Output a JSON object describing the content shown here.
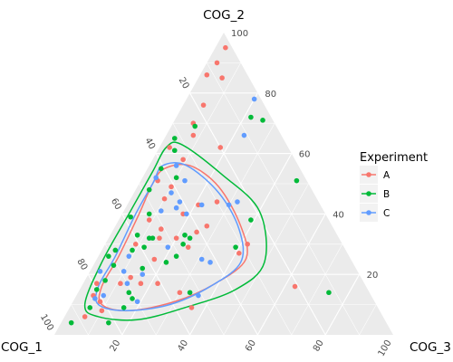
{
  "chart_data": {
    "type": "ternary-scatter",
    "axes": {
      "top": "COG_2",
      "left": "COG_1",
      "right": "COG_3"
    },
    "ticks": [
      20,
      40,
      60,
      80,
      100
    ],
    "grid": true,
    "legend": {
      "title": "Experiment",
      "position": "right",
      "entries": [
        {
          "name": "A",
          "color": "#F8766D"
        },
        {
          "name": "B",
          "color": "#00BA38"
        },
        {
          "name": "C",
          "color": "#619CFF"
        }
      ]
    },
    "series": [
      {
        "name": "A",
        "color": "#F8766D",
        "points": [
          {
            "cog1": 2,
            "cog2": 95,
            "cog3": 3
          },
          {
            "cog1": 7,
            "cog2": 90,
            "cog3": 3
          },
          {
            "cog1": 12,
            "cog2": 86,
            "cog3": 2
          },
          {
            "cog1": 8,
            "cog2": 85,
            "cog3": 7
          },
          {
            "cog1": 18,
            "cog2": 76,
            "cog3": 6
          },
          {
            "cog1": 35,
            "cog2": 62,
            "cog3": 3
          },
          {
            "cog1": 24,
            "cog2": 70,
            "cog3": 6
          },
          {
            "cog1": 26,
            "cog2": 66,
            "cog3": 8
          },
          {
            "cog1": 44,
            "cog2": 51,
            "cog3": 5
          },
          {
            "cog1": 33,
            "cog2": 58,
            "cog3": 9
          },
          {
            "cog1": 45,
            "cog2": 45,
            "cog3": 10
          },
          {
            "cog1": 53,
            "cog2": 38,
            "cog3": 9
          },
          {
            "cog1": 41,
            "cog2": 49,
            "cog3": 10
          },
          {
            "cog1": 30,
            "cog2": 44,
            "cog3": 26
          },
          {
            "cog1": 42,
            "cog2": 40,
            "cog3": 18
          },
          {
            "cog1": 51,
            "cog2": 35,
            "cog3": 14
          },
          {
            "cog1": 36,
            "cog2": 43,
            "cog3": 21
          },
          {
            "cog1": 61,
            "cog2": 30,
            "cog3": 9
          },
          {
            "cog1": 53,
            "cog2": 32,
            "cog3": 15
          },
          {
            "cog1": 48,
            "cog2": 32,
            "cog3": 20
          },
          {
            "cog1": 41,
            "cog2": 34,
            "cog3": 25
          },
          {
            "cog1": 46,
            "cog2": 29,
            "cog3": 25
          },
          {
            "cog1": 58,
            "cog2": 25,
            "cog3": 17
          },
          {
            "cog1": 37,
            "cog2": 36,
            "cog3": 27
          },
          {
            "cog1": 72,
            "cog2": 17,
            "cog3": 11
          },
          {
            "cog1": 79,
            "cog2": 17,
            "cog3": 4
          },
          {
            "cog1": 68,
            "cog2": 19,
            "cog3": 13
          },
          {
            "cog1": 88,
            "cog2": 6,
            "cog3": 6
          },
          {
            "cog1": 82,
            "cog2": 8,
            "cog3": 10
          },
          {
            "cog1": 81,
            "cog2": 11,
            "cog3": 8
          },
          {
            "cog1": 82,
            "cog2": 13,
            "cog3": 5
          },
          {
            "cog1": 56,
            "cog2": 14,
            "cog3": 30
          },
          {
            "cog1": 55,
            "cog2": 9,
            "cog3": 36
          },
          {
            "cog1": 66,
            "cog2": 17,
            "cog3": 17
          },
          {
            "cog1": 61,
            "cog2": 17,
            "cog3": 22
          },
          {
            "cog1": 32,
            "cog2": 27,
            "cog3": 41
          },
          {
            "cog1": 28,
            "cog2": 30,
            "cog3": 42
          },
          {
            "cog1": 20,
            "cog2": 62,
            "cog3": 18
          },
          {
            "cog1": 21,
            "cog2": 16,
            "cog3": 63
          }
        ]
      },
      {
        "name": "B",
        "color": "#00BA38",
        "points": [
          {
            "cog1": 24,
            "cog2": 69,
            "cog3": 7
          },
          {
            "cog1": 32,
            "cog2": 65,
            "cog3": 3
          },
          {
            "cog1": 34,
            "cog2": 61,
            "cog3": 5
          },
          {
            "cog1": 6,
            "cog2": 72,
            "cog3": 22
          },
          {
            "cog1": 3,
            "cog2": 71,
            "cog3": 26
          },
          {
            "cog1": 41,
            "cog2": 55,
            "cog3": 4
          },
          {
            "cog1": 38,
            "cog2": 52,
            "cog3": 10
          },
          {
            "cog1": 58,
            "cog2": 39,
            "cog3": 3
          },
          {
            "cog1": 48,
            "cog2": 48,
            "cog3": 4
          },
          {
            "cog1": 52,
            "cog2": 40,
            "cog3": 8
          },
          {
            "cog1": 59,
            "cog2": 33,
            "cog3": 8
          },
          {
            "cog1": 68,
            "cog2": 28,
            "cog3": 4
          },
          {
            "cog1": 59,
            "cog2": 29,
            "cog3": 12
          },
          {
            "cog1": 56,
            "cog2": 32,
            "cog3": 12
          },
          {
            "cog1": 55,
            "cog2": 32,
            "cog3": 13
          },
          {
            "cog1": 45,
            "cog2": 33,
            "cog3": 22
          },
          {
            "cog1": 71,
            "cog2": 26,
            "cog3": 3
          },
          {
            "cog1": 71,
            "cog2": 23,
            "cog3": 6
          },
          {
            "cog1": 76,
            "cog2": 18,
            "cog3": 6
          },
          {
            "cog1": 63,
            "cog2": 28,
            "cog3": 9
          },
          {
            "cog1": 63,
            "cog2": 22,
            "cog3": 15
          },
          {
            "cog1": 47,
            "cog2": 30,
            "cog3": 23
          },
          {
            "cog1": 51,
            "cog2": 26,
            "cog3": 23
          },
          {
            "cog1": 55,
            "cog2": 24,
            "cog3": 21
          },
          {
            "cog1": 71,
            "cog2": 14,
            "cog3": 15
          },
          {
            "cog1": 80,
            "cog2": 15,
            "cog3": 5
          },
          {
            "cog1": 93,
            "cog2": 4,
            "cog3": 3
          },
          {
            "cog1": 85,
            "cog2": 9,
            "cog3": 6
          },
          {
            "cog1": 71,
            "cog2": 12,
            "cog3": 17
          },
          {
            "cog1": 75,
            "cog2": 9,
            "cog3": 16
          },
          {
            "cog1": 82,
            "cog2": 4,
            "cog3": 14
          },
          {
            "cog1": 53,
            "cog2": 14,
            "cog3": 33
          },
          {
            "cog1": 44,
            "cog2": 32,
            "cog3": 24
          },
          {
            "cog1": 3,
            "cog2": 51,
            "cog3": 46
          },
          {
            "cog1": 23,
            "cog2": 38,
            "cog3": 39
          },
          {
            "cog1": 32,
            "cog2": 29,
            "cog3": 39
          },
          {
            "cog1": 12,
            "cog2": 14,
            "cog3": 74
          }
        ]
      },
      {
        "name": "C",
        "color": "#619CFF",
        "points": [
          {
            "cog1": 2,
            "cog2": 78,
            "cog3": 20
          },
          {
            "cog1": 11,
            "cog2": 66,
            "cog3": 23
          },
          {
            "cog1": 44,
            "cog2": 52,
            "cog3": 4
          },
          {
            "cog1": 36,
            "cog2": 56,
            "cog3": 8
          },
          {
            "cog1": 36,
            "cog2": 51,
            "cog3": 13
          },
          {
            "cog1": 48,
            "cog2": 41,
            "cog3": 11
          },
          {
            "cog1": 35,
            "cog2": 43,
            "cog3": 22
          },
          {
            "cog1": 43,
            "cog2": 42,
            "cog3": 15
          },
          {
            "cog1": 24,
            "cog2": 44,
            "cog3": 32
          },
          {
            "cog1": 27,
            "cog2": 43,
            "cog3": 30
          },
          {
            "cog1": 41,
            "cog2": 40,
            "cog3": 19
          },
          {
            "cog1": 52,
            "cog2": 29,
            "cog3": 19
          },
          {
            "cog1": 65,
            "cog2": 26,
            "cog3": 9
          },
          {
            "cog1": 76,
            "cog2": 21,
            "cog3": 3
          },
          {
            "cog1": 64,
            "cog2": 20,
            "cog3": 16
          },
          {
            "cog1": 69,
            "cog2": 21,
            "cog3": 10
          },
          {
            "cog1": 44,
            "cog2": 25,
            "cog3": 31
          },
          {
            "cog1": 42,
            "cog2": 24,
            "cog3": 34
          },
          {
            "cog1": 70,
            "cog2": 11,
            "cog3": 19
          },
          {
            "cog1": 70,
            "cog2": 17,
            "cog3": 13
          },
          {
            "cog1": 82,
            "cog2": 12,
            "cog3": 6
          },
          {
            "cog1": 79,
            "cog2": 13,
            "cog3": 8
          },
          {
            "cog1": 41,
            "cog2": 44,
            "cog3": 15
          },
          {
            "cog1": 51,
            "cog2": 13,
            "cog3": 36
          },
          {
            "cog1": 42,
            "cog2": 47,
            "cog3": 11
          }
        ]
      }
    ],
    "contours": [
      {
        "series": "A",
        "color": "#F8766D",
        "points": [
          {
            "cog1": 40,
            "cog2": 55,
            "cog3": 5
          },
          {
            "cog1": 32,
            "cog2": 56,
            "cog3": 12
          },
          {
            "cog1": 27,
            "cog2": 49,
            "cog3": 24
          },
          {
            "cog1": 27,
            "cog2": 36,
            "cog3": 37
          },
          {
            "cog1": 31,
            "cog2": 25,
            "cog3": 44
          },
          {
            "cog1": 44,
            "cog2": 17,
            "cog3": 39
          },
          {
            "cog1": 59,
            "cog2": 11,
            "cog3": 30
          },
          {
            "cog1": 74,
            "cog2": 8,
            "cog3": 18
          },
          {
            "cog1": 81,
            "cog2": 10,
            "cog3": 9
          },
          {
            "cog1": 78,
            "cog2": 16,
            "cog3": 6
          },
          {
            "cog1": 68,
            "cog2": 26,
            "cog3": 6
          },
          {
            "cog1": 55,
            "cog2": 40,
            "cog3": 5
          },
          {
            "cog1": 46,
            "cog2": 50,
            "cog3": 4
          }
        ]
      },
      {
        "series": "B",
        "color": "#00BA38",
        "points": [
          {
            "cog1": 36,
            "cog2": 62,
            "cog3": 2
          },
          {
            "cog1": 31,
            "cog2": 63,
            "cog3": 6
          },
          {
            "cog1": 24,
            "cog2": 53,
            "cog3": 23
          },
          {
            "cog1": 19,
            "cog2": 41,
            "cog3": 40
          },
          {
            "cog1": 26,
            "cog2": 24,
            "cog3": 50
          },
          {
            "cog1": 39,
            "cog2": 15,
            "cog3": 46
          },
          {
            "cog1": 57,
            "cog2": 9,
            "cog3": 34
          },
          {
            "cog1": 73,
            "cog2": 5,
            "cog3": 22
          },
          {
            "cog1": 84,
            "cog2": 6,
            "cog3": 10
          },
          {
            "cog1": 86,
            "cog2": 10,
            "cog3": 4
          },
          {
            "cog1": 74,
            "cog2": 24,
            "cog3": 2
          },
          {
            "cog1": 57,
            "cog2": 41,
            "cog3": 2
          },
          {
            "cog1": 44,
            "cog2": 54,
            "cog3": 2
          }
        ]
      },
      {
        "series": "C",
        "color": "#619CFF",
        "points": [
          {
            "cog1": 40,
            "cog2": 56,
            "cog3": 4
          },
          {
            "cog1": 33,
            "cog2": 56,
            "cog3": 11
          },
          {
            "cog1": 28,
            "cog2": 47,
            "cog3": 25
          },
          {
            "cog1": 28,
            "cog2": 35,
            "cog3": 37
          },
          {
            "cog1": 33,
            "cog2": 24,
            "cog3": 43
          },
          {
            "cog1": 46,
            "cog2": 16,
            "cog3": 38
          },
          {
            "cog1": 61,
            "cog2": 10,
            "cog3": 29
          },
          {
            "cog1": 75,
            "cog2": 8,
            "cog3": 17
          },
          {
            "cog1": 82,
            "cog2": 10,
            "cog3": 8
          },
          {
            "cog1": 79,
            "cog2": 16,
            "cog3": 5
          },
          {
            "cog1": 69,
            "cog2": 26,
            "cog3": 5
          },
          {
            "cog1": 56,
            "cog2": 40,
            "cog3": 4
          },
          {
            "cog1": 46,
            "cog2": 50,
            "cog3": 4
          }
        ]
      }
    ]
  }
}
